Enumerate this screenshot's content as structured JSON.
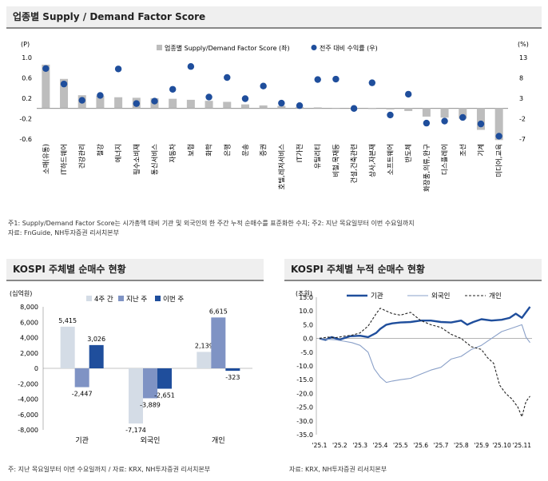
{
  "section_titles": {
    "top": "업종별 Supply / Demand Factor Score",
    "bottom_left": "KOSPI 주체별 순매수 현황",
    "bottom_right": "KOSPI 주체별 누적 순매수 현황"
  },
  "notes": {
    "top_line1": "주1: Supply/Demand Factor Score는 시가총액 대비 기관 및 외국인의 한 주간 누적 순매수를 표준화한 수치; 주2: 지난 목요일부터 이번 수요일까지",
    "top_line2": "자료: FnGuide, NH투자증권 리서치본부",
    "bottom_left": "주: 지난 목요일부터 이번 수요일까지 / 자료: KRX, NH투자증권 리서치본부",
    "bottom_right": "자료: KRX, NH투자증권 리서치본부"
  },
  "chart_data": [
    {
      "type": "bar",
      "title": "업종별 Supply / Demand Factor Score",
      "left_axis_unit": "(P)",
      "right_axis_unit": "(%)",
      "ylim_left": [
        -0.6,
        1.0
      ],
      "ylim_right": [
        -7,
        13
      ],
      "left_ticks": [
        "1.0",
        "0.6",
        "0.2",
        "-0.2",
        "-0.6"
      ],
      "right_ticks": [
        "13",
        "8",
        "3",
        "-2",
        "-7"
      ],
      "categories": [
        "소매(유통)",
        "IT하드웨어",
        "건강관리",
        "철강",
        "에너지",
        "필수소비재",
        "통신서비스",
        "자동차",
        "보험",
        "화학",
        "은행",
        "운송",
        "증권",
        "호텔,레저서비스",
        "IT가전",
        "유틸리티",
        "비철,목재등",
        "건설,건축관련",
        "상사,자본재",
        "소프트웨어",
        "반도체",
        "화장품,의류,완구",
        "디스플레이",
        "조선",
        "기계",
        "미디어,교육"
      ],
      "series": [
        {
          "name": "업종별 Supply/Demand Factor Score (좌)",
          "axis": "left",
          "color": "#bdbdbd",
          "values": [
            0.86,
            0.58,
            0.26,
            0.25,
            0.22,
            0.21,
            0.2,
            0.19,
            0.17,
            0.15,
            0.13,
            0.08,
            0.06,
            0.05,
            0.03,
            0.02,
            0.01,
            0.0,
            -0.01,
            -0.02,
            -0.05,
            -0.16,
            -0.18,
            -0.2,
            -0.42,
            -0.62
          ]
        },
        {
          "name": "전주 대비 수익률 (우)",
          "axis": "right",
          "color": "#1f4e9c",
          "values": [
            10.3,
            6.5,
            2.5,
            3.7,
            10.2,
            1.7,
            2.3,
            5.2,
            10.8,
            3.3,
            8.1,
            2.9,
            6.0,
            1.8,
            1.2,
            7.6,
            7.7,
            0.5,
            6.8,
            -1.1,
            4.0,
            -3.1,
            -2.6,
            -1.7,
            -3.3,
            -6.3
          ]
        }
      ]
    },
    {
      "type": "bar",
      "title": "KOSPI 주체별 순매수 현황",
      "ylabel": "(십억원)",
      "ylim": [
        -8000,
        8000
      ],
      "y_ticks": [
        "8,000",
        "6,000",
        "4,000",
        "2,000",
        "0",
        "-2,000",
        "-4,000",
        "-6,000",
        "-8,000"
      ],
      "categories": [
        "기관",
        "외국인",
        "개인"
      ],
      "series": [
        {
          "name": "4주 간",
          "color": "#d4dce6",
          "values": [
            5415,
            -7174,
            2139
          ],
          "labels": [
            "5,415",
            "-7,174",
            "2,139"
          ]
        },
        {
          "name": "지난 주",
          "color": "#7f93c4",
          "values": [
            -2447,
            -3889,
            6615
          ],
          "labels": [
            "-2,447",
            "-3,889",
            "6,615"
          ]
        },
        {
          "name": "이번 주",
          "color": "#1f4e9c",
          "values": [
            3026,
            -2651,
            -323
          ],
          "labels": [
            "3,026",
            "-2,651",
            "-323"
          ]
        }
      ]
    },
    {
      "type": "line",
      "title": "KOSPI 주체별 누적 순매수 현황",
      "ylabel": "(조원)",
      "ylim": [
        -35,
        15
      ],
      "y_ticks": [
        "15.0",
        "10.0",
        "5.0",
        "0.0",
        "-5.0",
        "-10.0",
        "-15.0",
        "-20.0",
        "-25.0",
        "-30.0",
        "-35.0"
      ],
      "x_tick_labels": [
        "'25.1",
        "'25.2",
        "'25.3",
        "'25.4",
        "'25.5",
        "'25.6",
        "'25.7",
        "'25.8",
        "'25.9",
        "'25.10",
        "'25.11"
      ],
      "x_range": [
        0,
        10.5
      ],
      "series": [
        {
          "name": "기관",
          "color": "#1f4e9c",
          "style": "solid-thick",
          "x": [
            0,
            0.3,
            0.6,
            1.0,
            1.5,
            2.0,
            2.4,
            2.8,
            3.0,
            3.3,
            3.6,
            4.0,
            4.5,
            5.0,
            5.5,
            6.0,
            6.5,
            7.0,
            7.3,
            7.6,
            8.0,
            8.5,
            9.0,
            9.4,
            9.7,
            10.0,
            10.2,
            10.4
          ],
          "y": [
            0,
            -0.5,
            0.5,
            -0.4,
            0.8,
            1.0,
            0.5,
            2.0,
            3.5,
            5.0,
            5.5,
            5.8,
            6.0,
            6.5,
            6.5,
            6.0,
            5.8,
            6.5,
            5.0,
            6.0,
            7.0,
            6.5,
            6.8,
            7.5,
            9.0,
            7.5,
            9.5,
            11.5
          ]
        },
        {
          "name": "외국인",
          "color": "#8aa0c8",
          "style": "solid-thin",
          "x": [
            0,
            0.4,
            0.8,
            1.2,
            1.6,
            2.0,
            2.4,
            2.7,
            3.0,
            3.3,
            3.6,
            4.0,
            4.5,
            5.0,
            5.5,
            6.0,
            6.5,
            7.0,
            7.5,
            8.0,
            8.5,
            9.0,
            9.4,
            9.8,
            10.0,
            10.2,
            10.4
          ],
          "y": [
            0,
            -0.3,
            -0.5,
            -1.0,
            -1.5,
            -2.5,
            -5.0,
            -11.0,
            -14.0,
            -16.0,
            -15.5,
            -15.0,
            -14.5,
            -13.0,
            -11.5,
            -10.5,
            -7.5,
            -6.5,
            -4.0,
            -2.5,
            0.0,
            2.5,
            3.5,
            4.5,
            5.0,
            0.5,
            -1.5
          ]
        },
        {
          "name": "개인",
          "color": "#222222",
          "style": "dashed",
          "x": [
            0,
            0.4,
            0.8,
            1.2,
            1.6,
            2.0,
            2.4,
            2.8,
            3.0,
            3.3,
            3.6,
            4.0,
            4.5,
            5.0,
            5.5,
            6.0,
            6.5,
            7.0,
            7.5,
            8.0,
            8.3,
            8.6,
            8.9,
            9.2,
            9.5,
            9.8,
            10.0,
            10.2,
            10.4
          ],
          "y": [
            0,
            0.5,
            0.3,
            0.8,
            1.2,
            2.0,
            4.5,
            9.0,
            11.0,
            10.0,
            9.0,
            8.5,
            9.5,
            6.5,
            5.0,
            4.0,
            1.5,
            0.0,
            -3.0,
            -4.0,
            -7.0,
            -9.0,
            -17.0,
            -20.0,
            -22.0,
            -25.0,
            -28.5,
            -23.0,
            -21.0
          ]
        }
      ]
    }
  ]
}
